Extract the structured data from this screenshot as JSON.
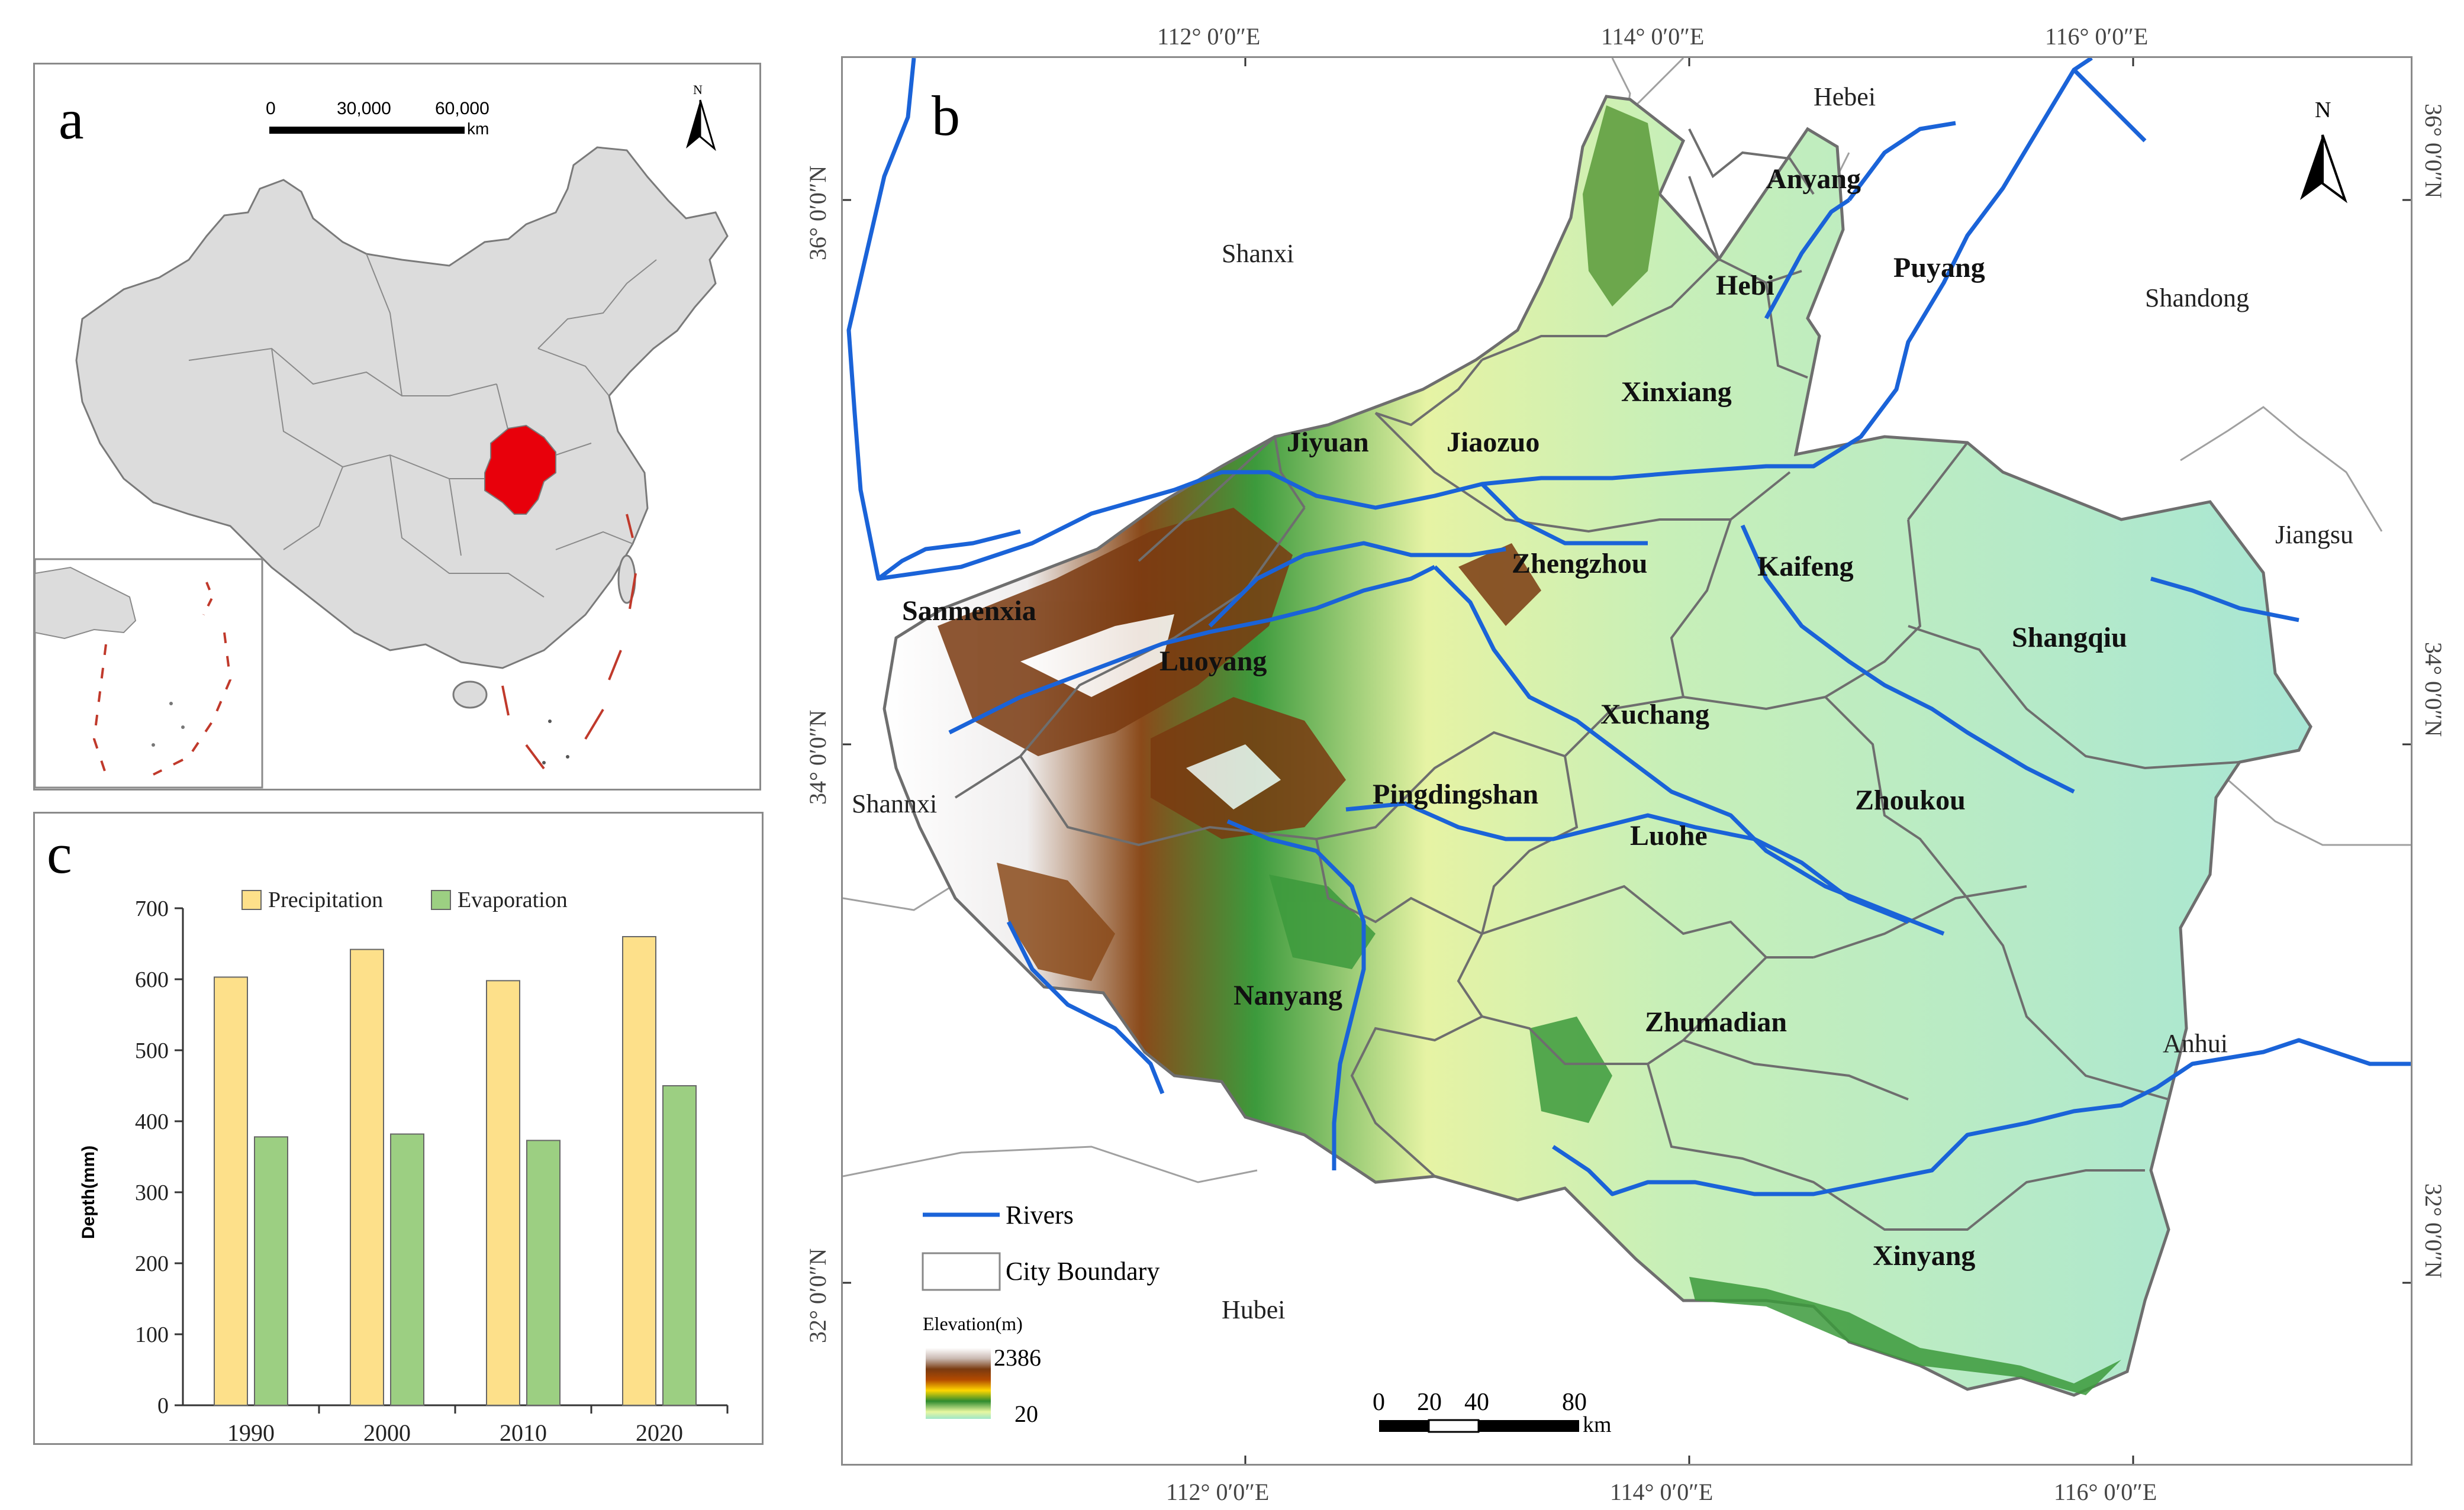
{
  "panel_a": {
    "letter": "a",
    "scale": {
      "ticks": [
        "0",
        "30,000",
        "60,000"
      ],
      "unit": "km"
    },
    "north": "N",
    "colors": {
      "land": "#dcdcdc",
      "highlight": "#e8000b",
      "border": "#7a7a7a",
      "island_line": "#c0392b"
    }
  },
  "panel_b": {
    "letter": "b",
    "north": "N",
    "top_ticks": [
      "112° 0′0″E",
      "114° 0′0″E",
      "116° 0′0″E"
    ],
    "bottom_ticks": [
      "112° 0′0″E",
      "114° 0′0″E",
      "116° 0′0″E"
    ],
    "left_ticks": [
      "36° 0′0″N",
      "34° 0′0″N",
      "32° 0′0″N"
    ],
    "right_ticks": [
      "36° 0′0″N",
      "34° 0′0″N",
      "32° 0′0″N"
    ],
    "provinces": [
      "Hebei",
      "Shanxi",
      "Shandong",
      "Jiangsu",
      "Shannxi",
      "Anhui",
      "Hubei"
    ],
    "cities": [
      "Anyang",
      "Hebi",
      "Puyang",
      "Xinxiang",
      "Jiyuan",
      "Jiaozuo",
      "Zhengzhou",
      "Kaifeng",
      "Sanmenxia",
      "Luoyang",
      "Shangqiu",
      "Xuchang",
      "Pingdingshan",
      "Luohe",
      "Zhoukou",
      "Nanyang",
      "Zhumadian",
      "Xinyang"
    ],
    "legend": {
      "rivers": "Rivers",
      "city_boundary": "City Boundary",
      "elevation_title": "Elevation(m)",
      "elevation_max": "2386",
      "elevation_min": "20"
    },
    "scale": {
      "ticks": [
        "0",
        "20",
        "40",
        "80"
      ],
      "unit": "km"
    },
    "colors": {
      "river": "#1a63d8",
      "boundary": "#6e6e6e",
      "lowland": "#9fe6c8",
      "highland": "#7a3a10"
    }
  },
  "panel_c": {
    "letter": "c",
    "chart_data": {
      "type": "bar",
      "categories": [
        "1990",
        "2000",
        "2010",
        "2020"
      ],
      "series": [
        {
          "name": "Precipitation",
          "values": [
            603,
            642,
            598,
            660
          ],
          "color": "#fde08a"
        },
        {
          "name": "Evaporation",
          "values": [
            378,
            382,
            373,
            450
          ],
          "color": "#9ccf82"
        }
      ],
      "ylabel": "Depth(mm)",
      "ylim": [
        0,
        700
      ],
      "yticks": [
        "0",
        "100",
        "200",
        "300",
        "400",
        "500",
        "600",
        "700"
      ],
      "legend_position": "top",
      "grid": false
    }
  }
}
